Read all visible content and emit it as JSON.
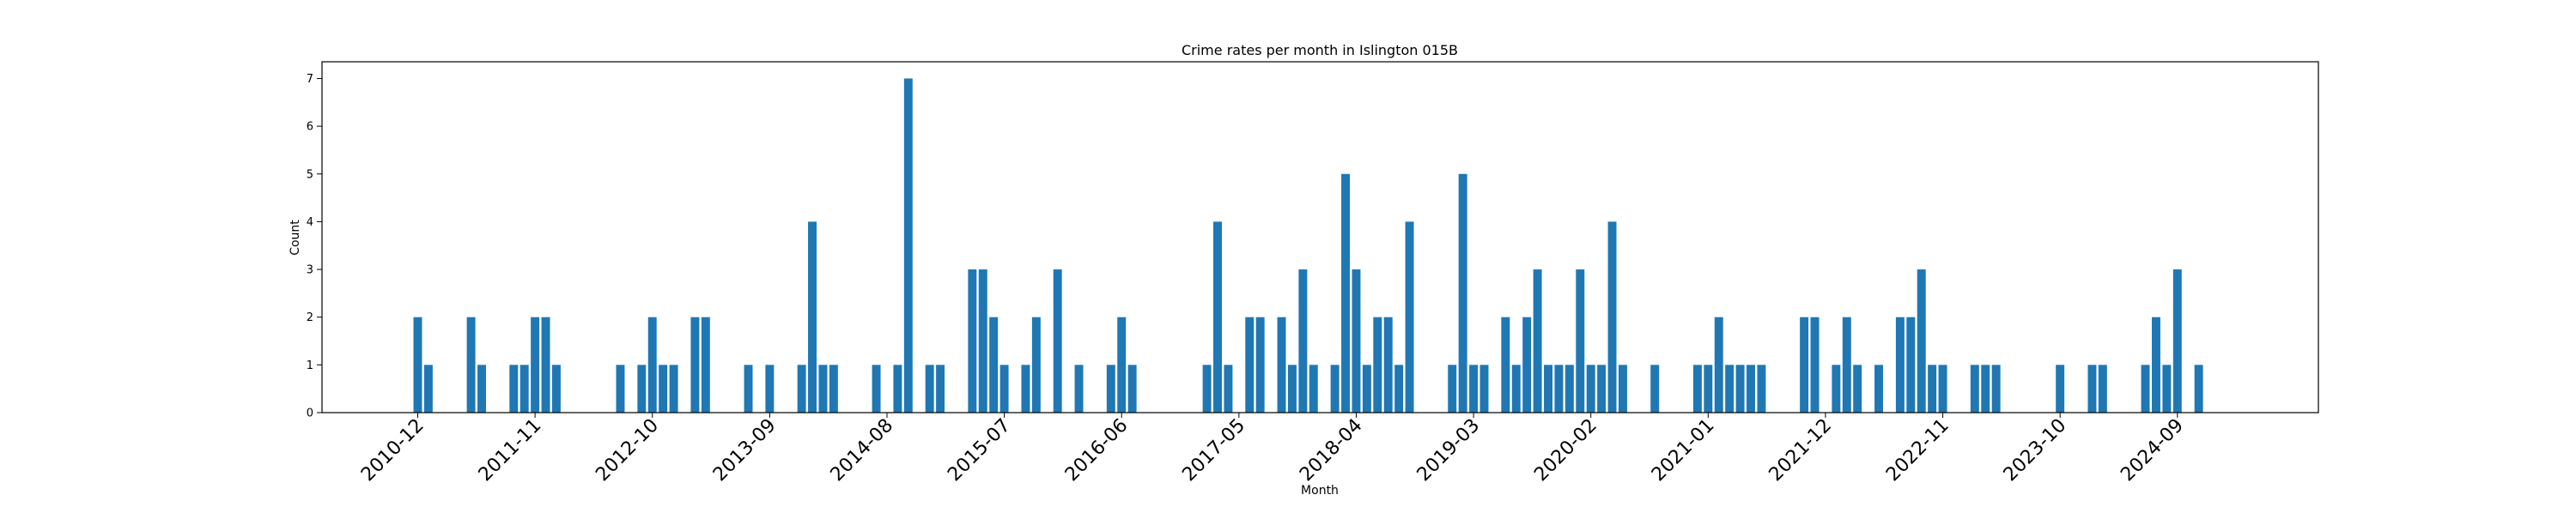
{
  "chart_data": {
    "type": "bar",
    "title": "Crime rates per month in Islington 015B",
    "xlabel": "Month",
    "ylabel": "Count",
    "ylim": [
      0,
      7.35
    ],
    "y_ticks": [
      "0",
      "1",
      "2",
      "3",
      "4",
      "5",
      "6",
      "7"
    ],
    "x_tick_labels": [
      "2010-12",
      "2011-11",
      "2012-10",
      "2013-09",
      "2014-08",
      "2015-07",
      "2016-06",
      "2017-05",
      "2018-04",
      "2019-03",
      "2020-02",
      "2021-01",
      "2021-12",
      "2022-11",
      "2023-10",
      "2024-09"
    ],
    "grid": false,
    "bar_color": "#1f77b4",
    "categories": [
      "2010-12",
      "2011-01",
      "2011-05",
      "2011-06",
      "2011-09",
      "2011-10",
      "2011-11",
      "2011-12",
      "2012-01",
      "2012-07",
      "2012-09",
      "2012-10",
      "2012-11",
      "2012-12",
      "2013-02",
      "2013-03",
      "2013-07",
      "2013-09",
      "2013-12",
      "2014-01",
      "2014-02",
      "2014-03",
      "2014-07",
      "2014-09",
      "2014-10",
      "2014-12",
      "2015-01",
      "2015-04",
      "2015-05",
      "2015-06",
      "2015-07",
      "2015-09",
      "2015-10",
      "2015-12",
      "2016-02",
      "2016-05",
      "2016-06",
      "2016-07",
      "2017-02",
      "2017-03",
      "2017-04",
      "2017-06",
      "2017-07",
      "2017-09",
      "2017-10",
      "2017-11",
      "2017-12",
      "2018-02",
      "2018-03",
      "2018-04",
      "2018-05",
      "2018-06",
      "2018-07",
      "2018-08",
      "2018-09",
      "2019-01",
      "2019-02",
      "2019-03",
      "2019-04",
      "2019-06",
      "2019-07",
      "2019-08",
      "2019-09",
      "2019-10",
      "2019-11",
      "2019-12",
      "2020-01",
      "2020-02",
      "2020-03",
      "2020-04",
      "2020-05",
      "2020-08",
      "2020-12",
      "2021-01",
      "2021-02",
      "2021-03",
      "2021-04",
      "2021-05",
      "2021-06",
      "2021-10",
      "2021-11",
      "2022-01",
      "2022-02",
      "2022-03",
      "2022-05",
      "2022-07",
      "2022-08",
      "2022-09",
      "2022-10",
      "2022-11",
      "2023-02",
      "2023-03",
      "2023-04",
      "2023-10",
      "2024-01",
      "2024-02",
      "2024-06",
      "2024-07",
      "2024-08",
      "2024-09",
      "2024-11"
    ],
    "values": [
      2,
      1,
      2,
      1,
      1,
      1,
      2,
      2,
      1,
      1,
      1,
      2,
      1,
      1,
      2,
      2,
      1,
      1,
      1,
      4,
      1,
      1,
      1,
      1,
      7,
      1,
      1,
      3,
      3,
      2,
      1,
      1,
      2,
      3,
      1,
      1,
      2,
      1,
      1,
      4,
      1,
      2,
      2,
      2,
      1,
      3,
      1,
      1,
      5,
      3,
      1,
      2,
      2,
      1,
      4,
      1,
      5,
      1,
      1,
      2,
      1,
      2,
      3,
      1,
      1,
      1,
      3,
      1,
      1,
      4,
      1,
      1,
      1,
      1,
      2,
      1,
      1,
      1,
      1,
      2,
      2,
      1,
      2,
      1,
      1,
      2,
      2,
      3,
      1,
      1,
      1,
      1,
      1,
      1,
      1,
      1,
      1,
      2,
      1,
      3,
      1
    ]
  }
}
